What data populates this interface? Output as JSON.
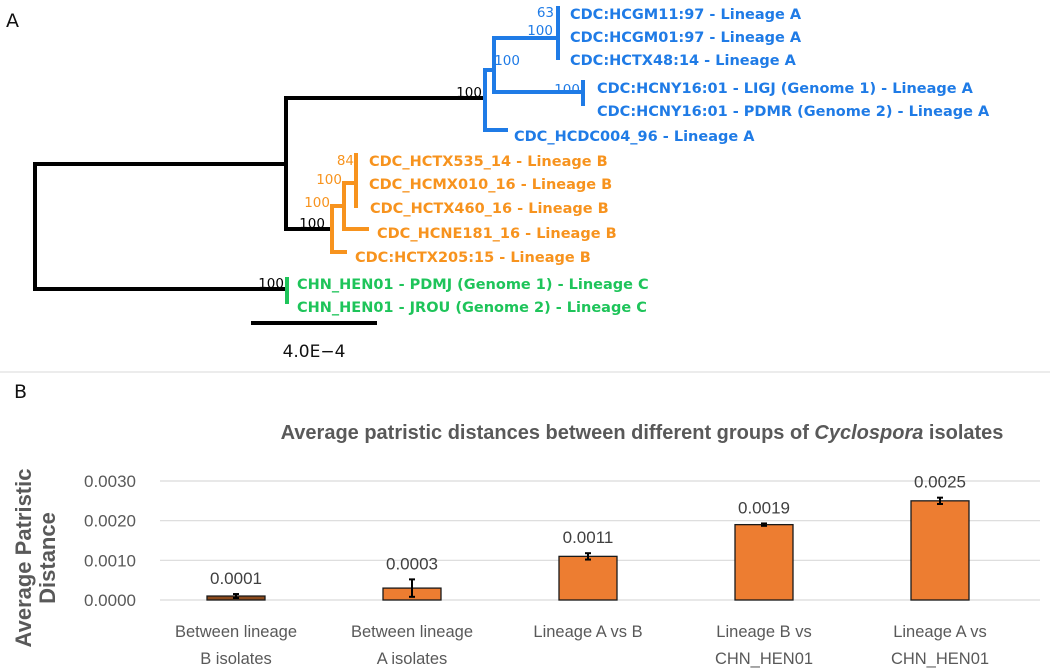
{
  "panel_a": {
    "label": "A",
    "colors": {
      "lineage_a": "#1f7be6",
      "lineage_b": "#f7931e",
      "lineage_c": "#1ec45a",
      "backbone": "#000000"
    },
    "leaves": [
      {
        "name": "CDC:HCGM11:97 - Lineage A",
        "lineage": "A"
      },
      {
        "name": "CDC:HCGM01:97 - Lineage A",
        "lineage": "A"
      },
      {
        "name": "CDC:HCTX48:14 - Lineage A",
        "lineage": "A"
      },
      {
        "name": "CDC:HCNY16:01 - LIGJ (Genome 1) - Lineage A",
        "lineage": "A"
      },
      {
        "name": "CDC:HCNY16:01 - PDMR (Genome 2) - Lineage A",
        "lineage": "A"
      },
      {
        "name": "CDC_HCDC004_96 - Lineage A",
        "lineage": "A"
      },
      {
        "name": "CDC_HCTX535_14 - Lineage B",
        "lineage": "B"
      },
      {
        "name": "CDC_HCMX010_16 - Lineage B",
        "lineage": "B"
      },
      {
        "name": "CDC_HCTX460_16 - Lineage B",
        "lineage": "B"
      },
      {
        "name": "CDC_HCNE181_16 - Lineage B",
        "lineage": "B"
      },
      {
        "name": "CDC:HCTX205:15 - Lineage B",
        "lineage": "B"
      },
      {
        "name": "CHN_HEN01 - PDMJ (Genome 1) - Lineage C",
        "lineage": "C"
      },
      {
        "name": "CHN_HEN01 - JROU (Genome 2) - Lineage C",
        "lineage": "C"
      }
    ],
    "bootstrap": [
      {
        "value": "63",
        "lineage": "A"
      },
      {
        "value": "100",
        "lineage": "A"
      },
      {
        "value": "100",
        "lineage": "A"
      },
      {
        "value": "100",
        "lineage": "A"
      },
      {
        "value": "100",
        "lineage": "backbone"
      },
      {
        "value": "84",
        "lineage": "B"
      },
      {
        "value": "100",
        "lineage": "B"
      },
      {
        "value": "100",
        "lineage": "B"
      },
      {
        "value": "100",
        "lineage": "backbone"
      },
      {
        "value": "100",
        "lineage": "backbone"
      }
    ],
    "scale_bar_label": "4.0E−4"
  },
  "panel_b": {
    "label": "B"
  },
  "chart_data": {
    "type": "bar",
    "title_parts": [
      "Average patristic distances between different groups of ",
      "Cyclospora",
      " isolates"
    ],
    "xlabel": "",
    "ylabel_lines": [
      "Average Patristic",
      "Distance"
    ],
    "categories": [
      [
        "Between lineage",
        "B isolates"
      ],
      [
        "Between lineage",
        "A isolates"
      ],
      [
        "Lineage A vs B"
      ],
      [
        "Lineage B vs",
        "CHN_HEN01"
      ],
      [
        "Lineage A vs",
        "CHN_HEN01"
      ]
    ],
    "values": [
      0.0001,
      0.0003,
      0.0011,
      0.0019,
      0.0025
    ],
    "data_labels": [
      "0.0001",
      "0.0003",
      "0.0011",
      "0.0019",
      "0.0025"
    ],
    "error": [
      5e-05,
      0.00022,
      8e-05,
      3e-05,
      8e-05
    ],
    "bar_colors": [
      "#8b4a1c",
      "#ed7d31",
      "#ed7d31",
      "#ed7d31",
      "#ed7d31"
    ],
    "ylim": [
      0,
      0.003
    ],
    "yticks": [
      "0.0000",
      "0.0010",
      "0.0020",
      "0.0030"
    ],
    "ytick_values": [
      0,
      0.001,
      0.002,
      0.003
    ],
    "grid": true,
    "legend": "none"
  }
}
